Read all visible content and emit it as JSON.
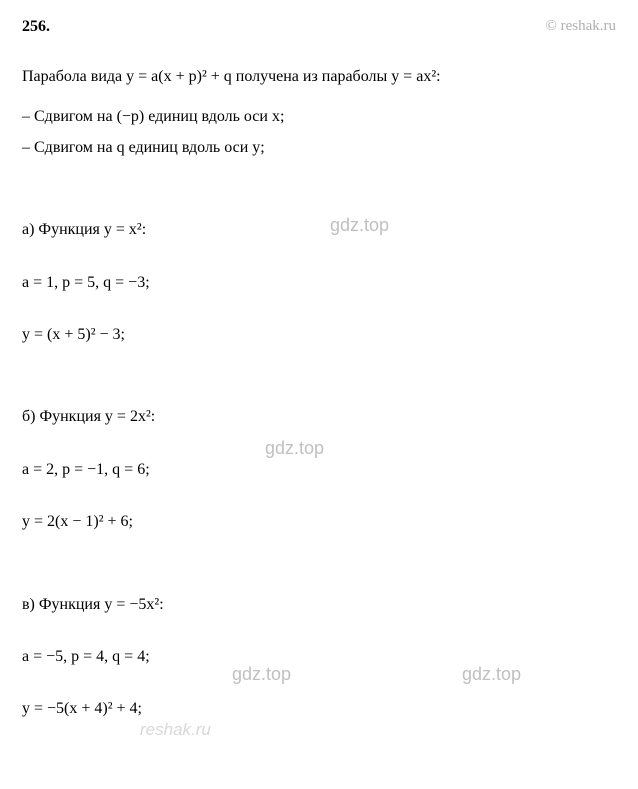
{
  "problem_number": "256.",
  "copyright": "© reshak.ru",
  "intro": "Парабола вида y = a(x + p)² + q получена из параболы y = ax²:",
  "rules": [
    "– Сдвигом на (−p) единиц вдоль оси x;",
    "– Сдвигом на q единиц вдоль оси y;"
  ],
  "parts": [
    {
      "label": "а) Функция y = x²:",
      "params": "a = 1,   p = 5,   q = −3;",
      "result": "y = (x + 5)² − 3;"
    },
    {
      "label": "б) Функция y = 2x²:",
      "params": "a = 2,   p = −1,   q = 6;",
      "result": "y = 2(x − 1)² + 6;"
    },
    {
      "label": "в) Функция y = −5x²:",
      "params": "a = −5,   p = 4,   q = 4;",
      "result": "y = −5(x + 4)² + 4;"
    }
  ],
  "watermark_text": "gdz.top",
  "logo_text": "reshak.ru",
  "colors": {
    "text": "#000000",
    "watermark": "#c0c0c0",
    "copyright": "#b0b0b0",
    "background": "#ffffff"
  },
  "fontsize": {
    "body": 16,
    "watermark": 18
  }
}
